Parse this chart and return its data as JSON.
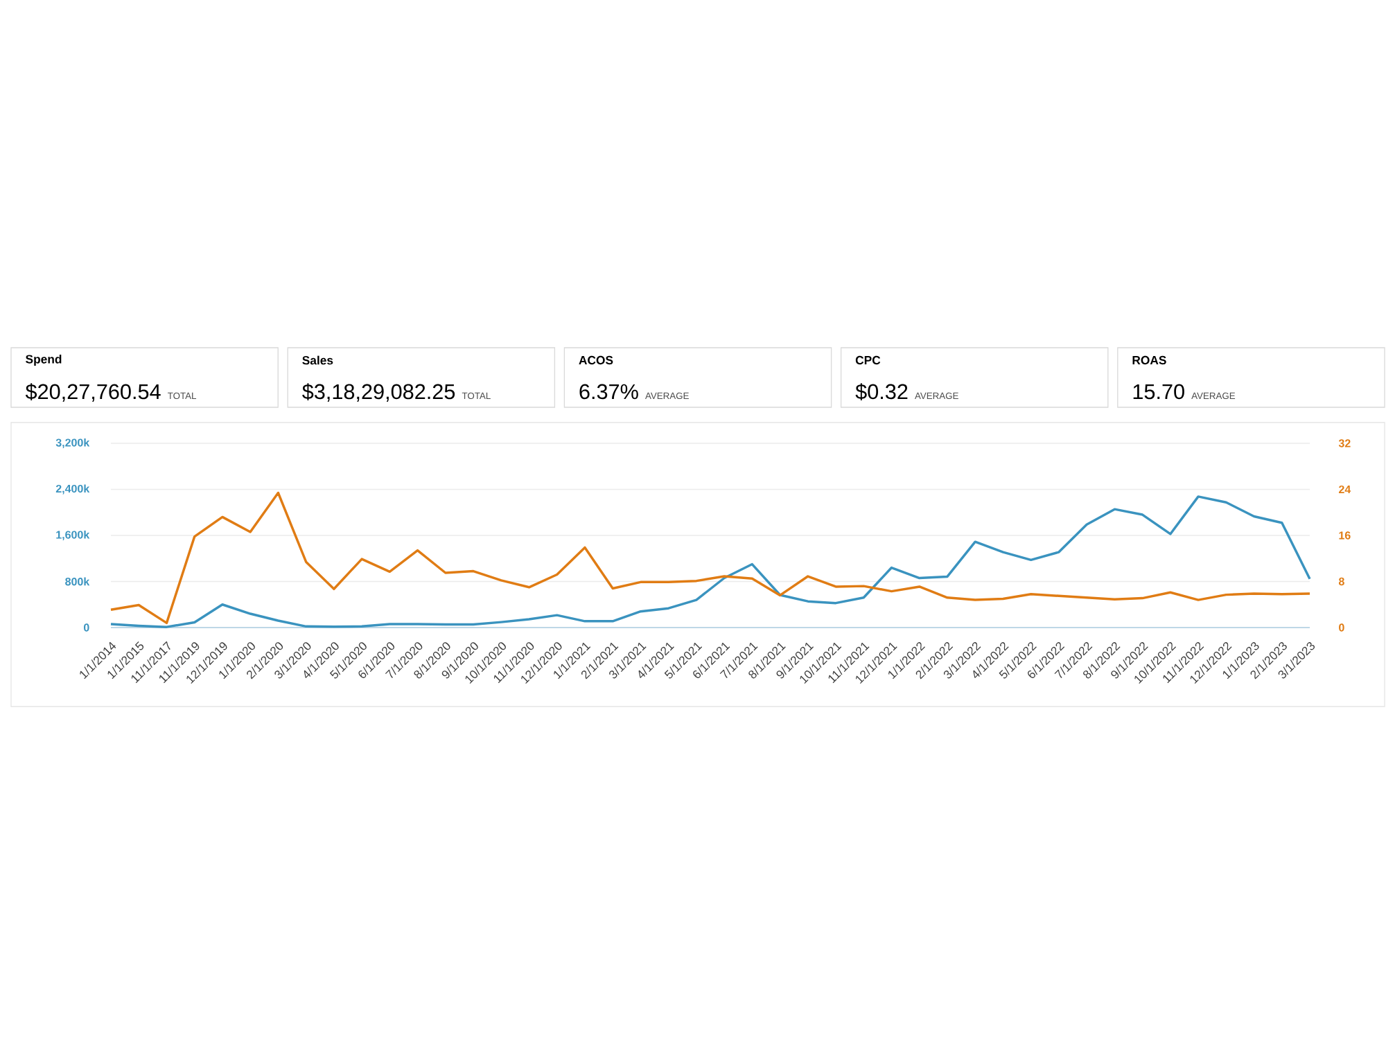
{
  "chart_data": [
    {
      "type": "other",
      "annotations": [
        "Spend",
        "$20,27,760.54",
        "TOTAL",
        "Sales",
        "$3,18,29,082.25",
        "TOTAL",
        "ACOS",
        "6.37%",
        "AVERAGE",
        "CPC",
        "$0.32",
        "AVERAGE",
        "ROAS",
        "15.70",
        "AVERAGE"
      ]
    },
    {
      "type": "line",
      "grid": "y",
      "categories": [
        "1/1/2014",
        "1/1/2015",
        "11/1/2017",
        "11/1/2019",
        "12/1/2019",
        "1/1/2020",
        "2/1/2020",
        "3/1/2020",
        "4/1/2020",
        "5/1/2020",
        "6/1/2020",
        "7/1/2020",
        "8/1/2020",
        "9/1/2020",
        "10/1/2020",
        "11/1/2020",
        "12/1/2020",
        "1/1/2021",
        "2/1/2021",
        "3/1/2021",
        "4/1/2021",
        "5/1/2021",
        "6/1/2021",
        "7/1/2021",
        "8/1/2021",
        "9/1/2021",
        "10/1/2021",
        "11/1/2021",
        "12/1/2021",
        "1/1/2022",
        "2/1/2022",
        "3/1/2022",
        "4/1/2022",
        "5/1/2022",
        "6/1/2022",
        "7/1/2022",
        "8/1/2022",
        "9/1/2022",
        "10/1/2022",
        "11/1/2022",
        "12/1/2022",
        "1/1/2023",
        "2/1/2023",
        "3/1/2023"
      ],
      "ylim": [
        0,
        3200000
      ],
      "yticks": [
        0,
        {
          "value": 800000,
          "label": "800k"
        },
        {
          "value": 1600000,
          "label": "1,600k"
        },
        {
          "value": 2400000,
          "label": "2,400k"
        },
        {
          "value": 3200000,
          "label": "3,200k"
        }
      ],
      "y2lim": [
        0,
        32
      ],
      "y2ticks": [
        0,
        8,
        16,
        24,
        32
      ],
      "series": [
        {
          "color": "#3a93bf",
          "values": [
            60000,
            30000,
            10000,
            90000,
            400000,
            240000,
            120000,
            20000,
            15000,
            20000,
            60000,
            60000,
            55000,
            55000,
            95000,
            145000,
            215000,
            110000,
            110000,
            280000,
            335000,
            480000,
            860000,
            1100000,
            565000,
            455000,
            425000,
            520000,
            1040000,
            860000,
            885000,
            1490000,
            1310000,
            1175000,
            1310000,
            1790000,
            2055000,
            1960000,
            1625000,
            2275000,
            2175000,
            1930000,
            1820000,
            845000
          ]
        },
        {
          "color": "#e07c14",
          "axis": "y2",
          "values": [
            3.1,
            3.9,
            0.8,
            15.8,
            19.2,
            16.6,
            23.4,
            11.4,
            6.7,
            11.9,
            9.7,
            13.4,
            9.5,
            9.8,
            8.2,
            7.0,
            9.2,
            13.9,
            6.8,
            7.9,
            7.9,
            8.1,
            8.9,
            8.5,
            5.6,
            8.9,
            7.1,
            7.2,
            6.3,
            7.1,
            5.2,
            4.8,
            5.0,
            5.8,
            5.5,
            5.2,
            4.9,
            5.1,
            6.1,
            4.8,
            5.7,
            5.9,
            5.8,
            5.9
          ]
        }
      ]
    }
  ]
}
